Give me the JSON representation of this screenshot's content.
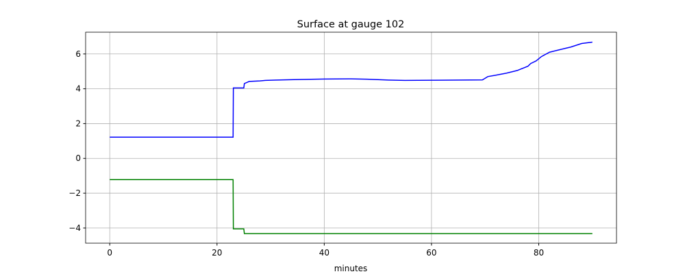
{
  "chart_data": {
    "type": "line",
    "title": "Surface at gauge 102",
    "xlabel": "minutes",
    "xlim": [
      -4.5,
      94.5
    ],
    "xticks": [
      0,
      20,
      40,
      60,
      80
    ],
    "ylim": [
      -4.87,
      7.25
    ],
    "yticks": [
      {
        "value": -4,
        "label": "−4"
      },
      {
        "value": -2,
        "label": "−2"
      },
      0,
      2,
      4,
      6
    ],
    "grid": true,
    "series": [
      {
        "color": "#0000ff",
        "x": [
          0,
          23,
          23.05,
          25,
          25.1,
          26,
          28,
          29,
          31,
          35,
          40,
          45,
          48,
          52,
          55,
          60,
          65,
          69.5,
          70.5,
          72,
          74,
          76,
          78,
          78.5,
          79.5,
          80.5,
          82,
          84,
          86,
          88,
          90
        ],
        "values": [
          1.22,
          1.22,
          4.05,
          4.05,
          4.3,
          4.42,
          4.45,
          4.48,
          4.5,
          4.53,
          4.56,
          4.57,
          4.55,
          4.5,
          4.48,
          4.49,
          4.5,
          4.51,
          4.7,
          4.78,
          4.9,
          5.05,
          5.3,
          5.45,
          5.6,
          5.85,
          6.1,
          6.25,
          6.4,
          6.6,
          6.68
        ]
      },
      {
        "color": "#008000",
        "x": [
          0,
          23,
          23.05,
          25,
          25.1,
          90
        ],
        "values": [
          -1.22,
          -1.22,
          -4.05,
          -4.05,
          -4.32,
          -4.32
        ]
      }
    ]
  }
}
